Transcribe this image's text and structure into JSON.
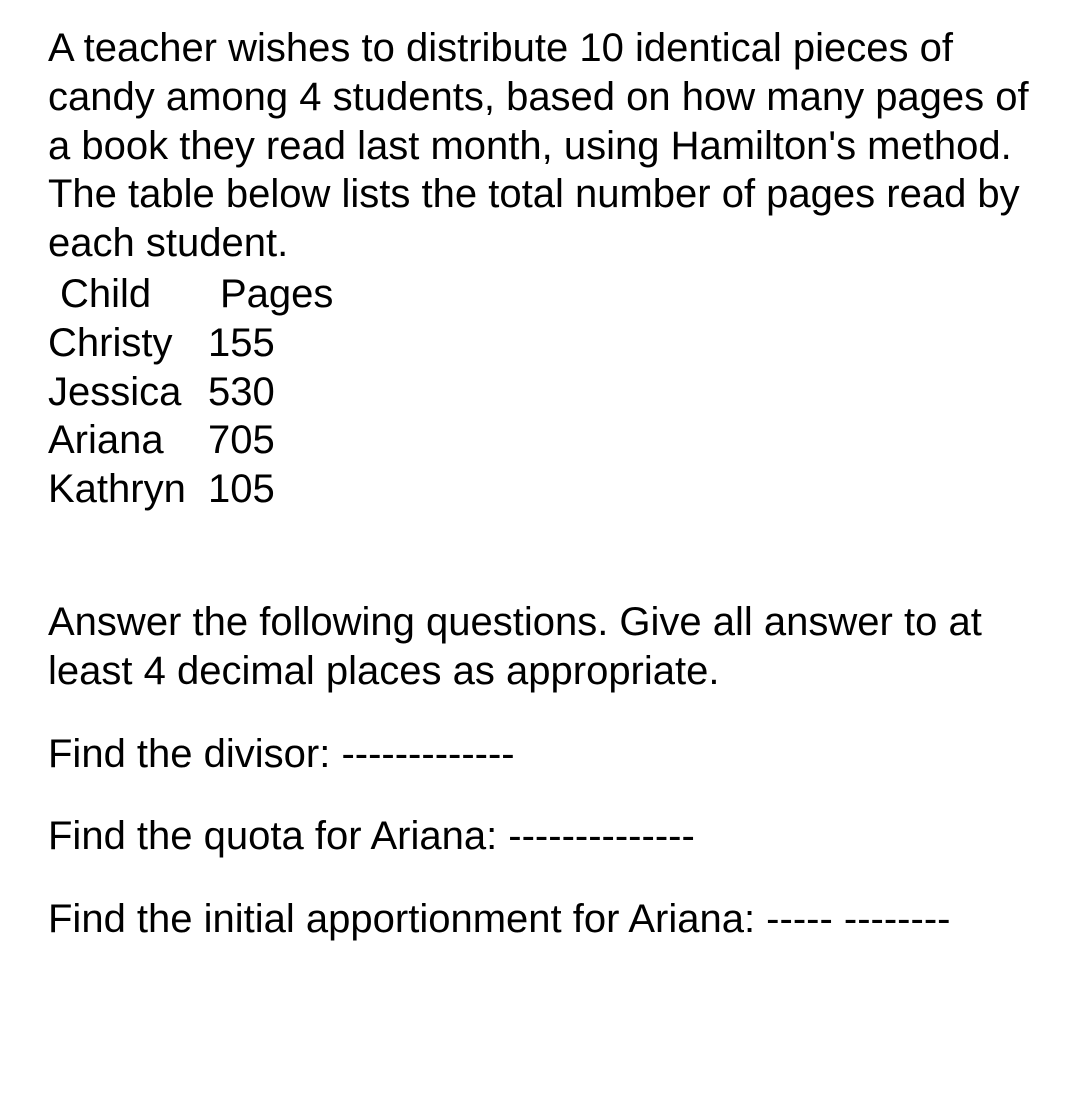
{
  "text_color": "#000000",
  "background_color": "#ffffff",
  "font_size_pt": 30,
  "intro": "A teacher wishes to distribute 10 identical pieces of candy among 4 students, based on how many pages of a book they read last month, using Hamilton's method. The table below lists the total number of pages read by each student.",
  "table": {
    "headers": {
      "child": "Child",
      "pages": "Pages"
    },
    "rows": [
      {
        "child": "Christy",
        "pages": "155"
      },
      {
        "child": "Jessica",
        "pages": "530"
      },
      {
        "child": "Ariana",
        "pages": "705"
      },
      {
        "child": "Kathryn",
        "pages": "105"
      }
    ]
  },
  "questions": {
    "intro": "Answer the following questions. Give all answer to at least 4 decimal places as appropriate.",
    "q1": "Find the divisor: -------------",
    "q2": "Find the quota for Ariana: --------------",
    "q3": "Find the initial apportionment for Ariana: ----- --------"
  }
}
